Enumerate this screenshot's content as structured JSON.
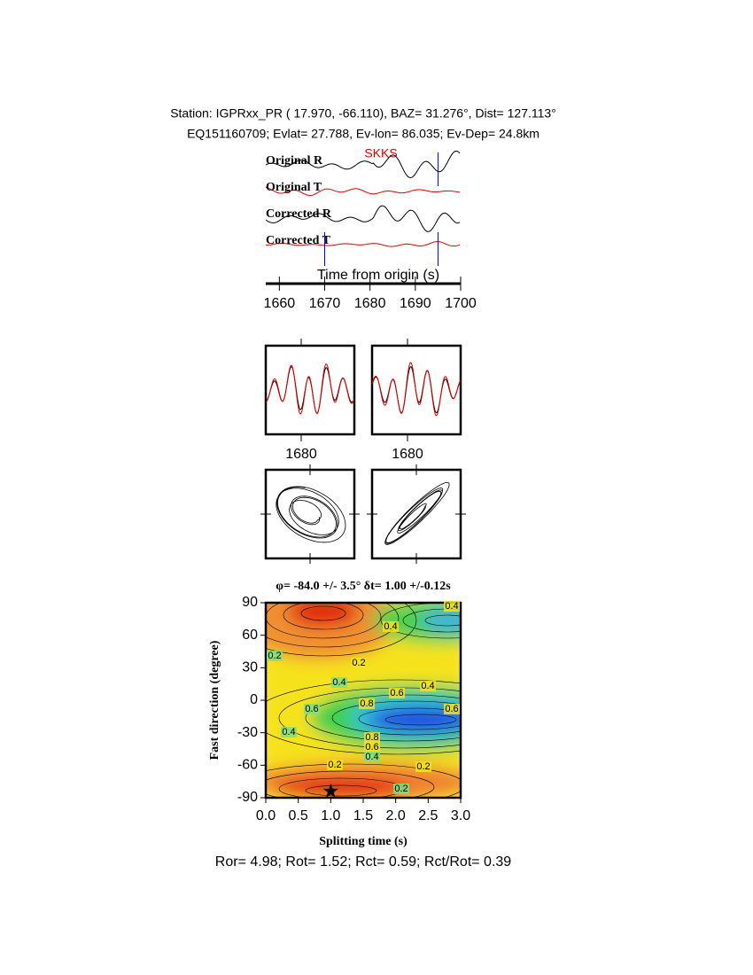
{
  "header": {
    "line1": "Station: IGPRxx_PR (  17.970,  -66.110), BAZ=   31.276°, Dist=  127.113°",
    "line2": "EQ151160709; Evlat=  27.788, Ev-lon=  86.035; Ev-Dep= 24.8km"
  },
  "waveforms": {
    "phase": "SKKS",
    "traces": [
      "Original R",
      "Original T",
      "Corrected R",
      "Corrected T"
    ],
    "xlabel": "Time from origin (s)",
    "xlim": [
      1657,
      1700
    ],
    "xticks": [
      1660,
      1670,
      1680,
      1690,
      1700
    ],
    "window": [
      1670,
      1695
    ]
  },
  "zoom": {
    "xlim": [
      1670,
      1695
    ],
    "xticks": [
      1680
    ]
  },
  "splitting": {
    "title": "φ= -84.0 +/- 3.5° δt= 1.00 +/-0.12s",
    "xlabel": "Splitting time (s)",
    "ylabel": "Fast direction (degree)",
    "xlim": [
      0,
      3
    ],
    "ylim": [
      -90,
      90
    ],
    "xticks": [
      {
        "value": 0,
        "label": "0.0"
      },
      0.5,
      {
        "value": 1,
        "label": "1.0"
      },
      1.5,
      {
        "value": 2,
        "label": "2.0"
      },
      2.5,
      {
        "value": 3,
        "label": "3.0"
      }
    ],
    "yticks": [
      -90,
      -60,
      -30,
      0,
      30,
      60,
      90
    ],
    "best": {
      "dt": 1.0,
      "phi": -84.0
    },
    "contour_labels": [
      "0.2",
      "0.2",
      "0.4",
      "0.4",
      "0.6",
      "0.4",
      "0.6",
      "0.8",
      "0.6",
      "0.4",
      "0.8",
      "0.6",
      "0.4",
      "0.2",
      "0.2",
      "0.2",
      "0.4"
    ]
  },
  "footer": "Ror= 4.98; Rot= 1.52; Rct= 0.59; Rct/Rot= 0.39"
}
